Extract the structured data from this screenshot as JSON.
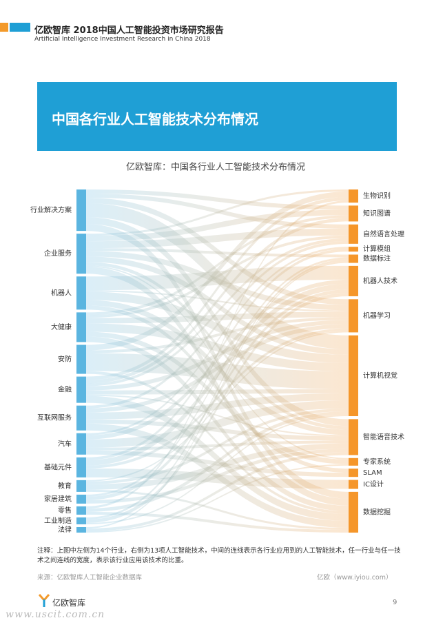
{
  "header": {
    "title": "亿欧智库 2018中国人工智能投资市场研究报告",
    "subtitle": "Artificial Intelligence Investment Research in China 2018"
  },
  "banner": {
    "title": "中国各行业人工智能技术分布情况"
  },
  "chart_data": {
    "type": "sankey",
    "title": "亿欧智库：中国各行业人工智能技术分布情况",
    "sources": [
      "行业解决方案",
      "企业服务",
      "机器人",
      "大健康",
      "安防",
      "金融",
      "互联网服务",
      "汽车",
      "基础元件",
      "教育",
      "家居建筑",
      "零售",
      "工业制造",
      "法律"
    ],
    "targets": [
      "生物识别",
      "知识图谱",
      "自然语言处理",
      "计算模组",
      "数据标注",
      "机器人技术",
      "机器学习",
      "计算机视觉",
      "智能语音技术",
      "专家系统",
      "SLAM",
      "IC设计",
      "数据挖掘"
    ],
    "source_color": "#5bb5e0",
    "target_color": "#f5962a",
    "links": [
      {
        "source": 0,
        "target": 1,
        "value": 6
      },
      {
        "source": 0,
        "target": 2,
        "value": 6
      },
      {
        "source": 0,
        "target": 6,
        "value": 8
      },
      {
        "source": 0,
        "target": 7,
        "value": 20
      },
      {
        "source": 0,
        "target": 8,
        "value": 10
      },
      {
        "source": 0,
        "target": 12,
        "value": 10
      },
      {
        "source": 1,
        "target": 0,
        "value": 3
      },
      {
        "source": 1,
        "target": 1,
        "value": 8
      },
      {
        "source": 1,
        "target": 2,
        "value": 10
      },
      {
        "source": 1,
        "target": 4,
        "value": 4
      },
      {
        "source": 1,
        "target": 6,
        "value": 8
      },
      {
        "source": 1,
        "target": 7,
        "value": 8
      },
      {
        "source": 1,
        "target": 8,
        "value": 5
      },
      {
        "source": 1,
        "target": 9,
        "value": 2
      },
      {
        "source": 1,
        "target": 12,
        "value": 10
      },
      {
        "source": 2,
        "target": 5,
        "value": 20
      },
      {
        "source": 2,
        "target": 6,
        "value": 2
      },
      {
        "source": 2,
        "target": 7,
        "value": 12
      },
      {
        "source": 2,
        "target": 8,
        "value": 8
      },
      {
        "source": 2,
        "target": 10,
        "value": 6
      },
      {
        "source": 3,
        "target": 1,
        "value": 4
      },
      {
        "source": 3,
        "target": 2,
        "value": 4
      },
      {
        "source": 3,
        "target": 6,
        "value": 8
      },
      {
        "source": 3,
        "target": 7,
        "value": 12
      },
      {
        "source": 3,
        "target": 9,
        "value": 7
      },
      {
        "source": 3,
        "target": 12,
        "value": 8
      },
      {
        "source": 4,
        "target": 0,
        "value": 8
      },
      {
        "source": 4,
        "target": 6,
        "value": 4
      },
      {
        "source": 4,
        "target": 7,
        "value": 26
      },
      {
        "source": 4,
        "target": 12,
        "value": 4
      },
      {
        "source": 5,
        "target": 0,
        "value": 5
      },
      {
        "source": 5,
        "target": 1,
        "value": 5
      },
      {
        "source": 5,
        "target": 2,
        "value": 4
      },
      {
        "source": 5,
        "target": 6,
        "value": 6
      },
      {
        "source": 5,
        "target": 7,
        "value": 6
      },
      {
        "source": 5,
        "target": 8,
        "value": 2
      },
      {
        "source": 5,
        "target": 12,
        "value": 10
      },
      {
        "source": 6,
        "target": 2,
        "value": 4
      },
      {
        "source": 6,
        "target": 6,
        "value": 6
      },
      {
        "source": 6,
        "target": 7,
        "value": 10
      },
      {
        "source": 6,
        "target": 8,
        "value": 6
      },
      {
        "source": 6,
        "target": 12,
        "value": 10
      },
      {
        "source": 7,
        "target": 3,
        "value": 3
      },
      {
        "source": 7,
        "target": 5,
        "value": 6
      },
      {
        "source": 7,
        "target": 7,
        "value": 12
      },
      {
        "source": 7,
        "target": 8,
        "value": 4
      },
      {
        "source": 7,
        "target": 10,
        "value": 6
      },
      {
        "source": 8,
        "target": 3,
        "value": 4
      },
      {
        "source": 8,
        "target": 5,
        "value": 8
      },
      {
        "source": 8,
        "target": 6,
        "value": 4
      },
      {
        "source": 8,
        "target": 11,
        "value": 13
      },
      {
        "source": 9,
        "target": 6,
        "value": 2
      },
      {
        "source": 9,
        "target": 7,
        "value": 4
      },
      {
        "source": 9,
        "target": 8,
        "value": 8
      },
      {
        "source": 9,
        "target": 12,
        "value": 3
      },
      {
        "source": 10,
        "target": 4,
        "value": 3
      },
      {
        "source": 10,
        "target": 5,
        "value": 5
      },
      {
        "source": 10,
        "target": 8,
        "value": 5
      },
      {
        "source": 11,
        "target": 0,
        "value": 3
      },
      {
        "source": 11,
        "target": 7,
        "value": 5
      },
      {
        "source": 11,
        "target": 12,
        "value": 4
      },
      {
        "source": 12,
        "target": 4,
        "value": 3
      },
      {
        "source": 12,
        "target": 5,
        "value": 5
      },
      {
        "source": 12,
        "target": 7,
        "value": 2
      },
      {
        "source": 13,
        "target": 4,
        "value": 2
      },
      {
        "source": 13,
        "target": 8,
        "value": 4
      },
      {
        "source": 13,
        "target": 9,
        "value": 2
      }
    ]
  },
  "note": "注释：上图中左侧为14个行业，右侧为13项人工智能技术，中间的连线表示各行业应用到的人工智能技术，任一行业与任一技术之间连线的宽度，表示该行业应用该技术的比重。",
  "source": "来源：亿欧智库人工智能企业数据库",
  "credit": "亿欧（www.iyiou.com）",
  "footer": {
    "brand": "亿欧智库",
    "page": 9,
    "watermark": "www.uscit.com.cn"
  }
}
